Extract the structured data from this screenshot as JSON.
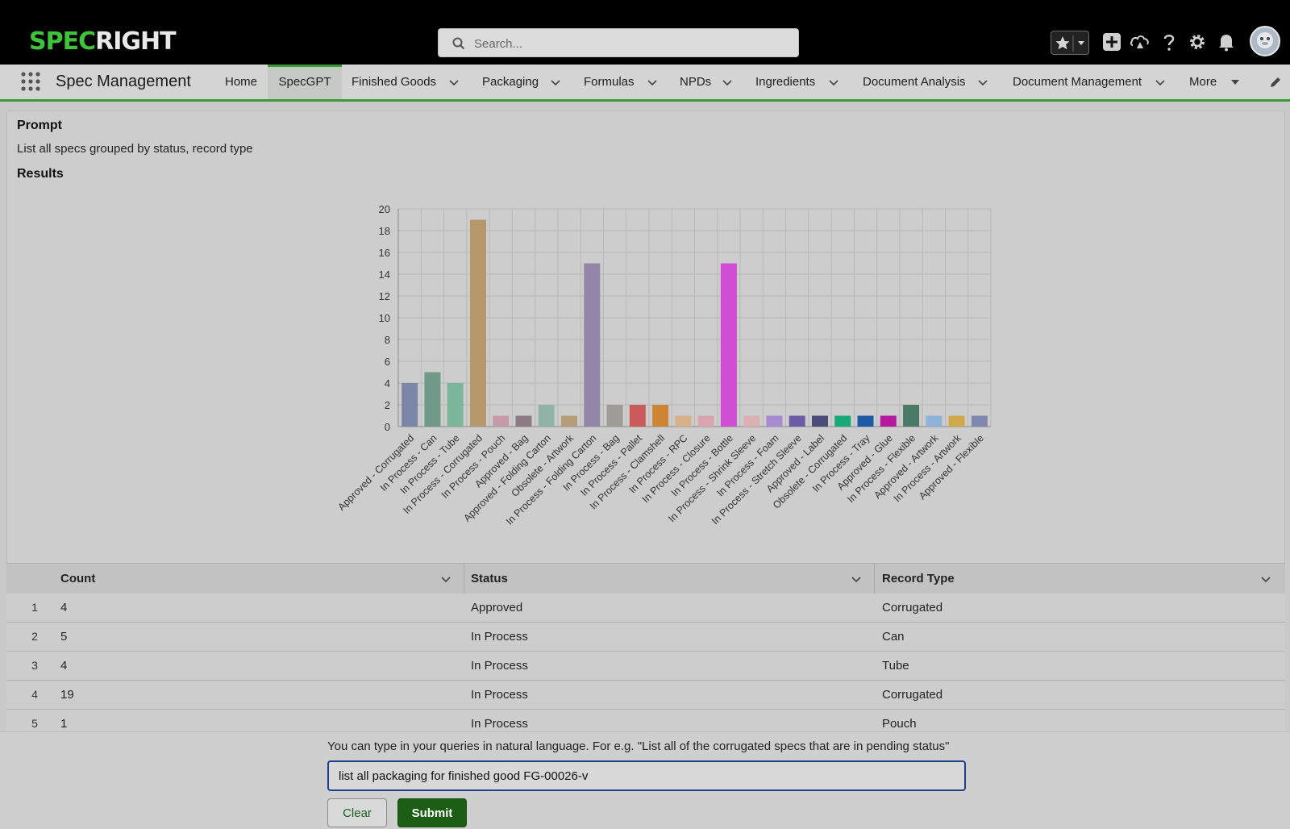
{
  "brand": {
    "part1": "SPEC",
    "part2": "RIGHT"
  },
  "search": {
    "placeholder": "Search..."
  },
  "app": {
    "name": "Spec Management"
  },
  "nav": [
    {
      "label": "Home",
      "dropdown": false
    },
    {
      "label": "SpecGPT",
      "dropdown": false,
      "active": true
    },
    {
      "label": "Finished Goods",
      "dropdown": true
    },
    {
      "label": "Packaging",
      "dropdown": true
    },
    {
      "label": "Formulas",
      "dropdown": true
    },
    {
      "label": "NPDs",
      "dropdown": true
    },
    {
      "label": "Ingredients",
      "dropdown": true
    },
    {
      "label": "Document Analysis",
      "dropdown": true
    },
    {
      "label": "Document Management",
      "dropdown": true
    },
    {
      "label": "More",
      "dropdown": true
    }
  ],
  "prompt": {
    "heading": "Prompt",
    "text": "List all specs grouped by status, record type"
  },
  "results": {
    "heading": "Results"
  },
  "chart_data": {
    "type": "bar",
    "categories": [
      "Approved - Corrugated",
      "In Process - Can",
      "In Process - Tube",
      "In Process - Corrugated",
      "In Process - Pouch",
      "Approved - Bag",
      "Approved - Folding Carton",
      "Obsolete - Artwork",
      "In Process - Folding Carton",
      "In Process - Bag",
      "In Process - Pallet",
      "In Process - Clamshell",
      "In Process - RPC",
      "In Process - Closure",
      "In Process - Bottle",
      "In Process - Shrink Sleeve",
      "In Process - Foam",
      "In Process - Stretch Sleeve",
      "Approved - Label",
      "Obsolete - Corrugated",
      "In Process - Tray",
      "Approved - Glue",
      "In Process - Flexible",
      "Approved - Artwork",
      "In Process - Artwork",
      "Approved - Flexible"
    ],
    "values": [
      4,
      5,
      4,
      19,
      1,
      1,
      2,
      1,
      15,
      2,
      2,
      2,
      1,
      1,
      15,
      1,
      1,
      1,
      1,
      1,
      1,
      1,
      2,
      1,
      1,
      1
    ],
    "colors": [
      "#7c87a8",
      "#6e9a87",
      "#7ab79a",
      "#b5976a",
      "#c79aa9",
      "#8b7b84",
      "#8fb3a7",
      "#b59d7a",
      "#9486a8",
      "#9e9a95",
      "#cc5a5a",
      "#cf8433",
      "#d8b08a",
      "#d9a3b0",
      "#d04ed3",
      "#dab0b2",
      "#a88ad0",
      "#6b5ca8",
      "#4b4c7a",
      "#17a978",
      "#1f5aa6",
      "#b4199f",
      "#4a7a66",
      "#8fb2d8",
      "#cfa94a",
      "#7f87ae"
    ],
    "yticks": [
      0,
      2,
      4,
      6,
      8,
      10,
      12,
      14,
      16,
      18,
      20
    ],
    "ylim": [
      0,
      20
    ],
    "title": "",
    "xlabel": "",
    "ylabel": "",
    "grid": true
  },
  "table": {
    "columns": [
      "Count",
      "Status",
      "Record Type"
    ],
    "rows": [
      {
        "n": "1",
        "count": "4",
        "status": "Approved",
        "type": "Corrugated"
      },
      {
        "n": "2",
        "count": "5",
        "status": "In Process",
        "type": "Can"
      },
      {
        "n": "3",
        "count": "4",
        "status": "In Process",
        "type": "Tube"
      },
      {
        "n": "4",
        "count": "19",
        "status": "In Process",
        "type": "Corrugated"
      },
      {
        "n": "5",
        "count": "1",
        "status": "In Process",
        "type": "Pouch"
      }
    ]
  },
  "query": {
    "hint": "You can type in your queries in natural language. For e.g. \"List all of the corrugated specs that are in pending status\"",
    "value": "list all packaging for finished good FG-00026-v",
    "clear_label": "Clear",
    "submit_label": "Submit"
  },
  "icons": {
    "apps": "app-launcher-icon",
    "favorites": "star-icon",
    "add": "plus-icon",
    "trailhead": "trailhead-icon",
    "help": "help-icon",
    "settings": "gear-icon",
    "notifications": "bell-icon",
    "edit": "pencil-icon"
  }
}
